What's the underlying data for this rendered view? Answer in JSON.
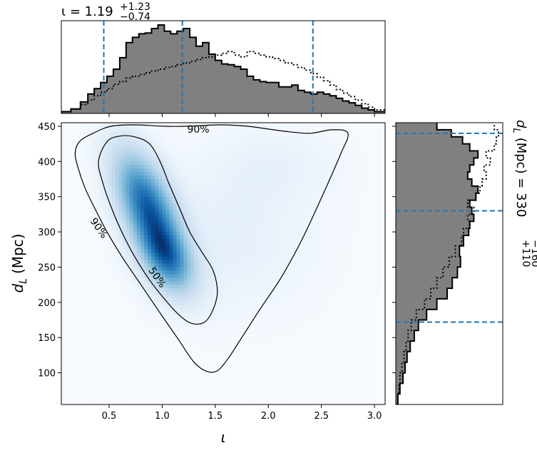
{
  "chart_data": {
    "type": "corner-plot",
    "panels": {
      "top_histogram": {
        "type": "histogram",
        "parameter": "ι",
        "title": "ι = 1.19",
        "title_sup": "+1.23",
        "title_sub": "−0.74",
        "xlim": [
          0.05,
          3.1
        ],
        "posterior_step": [
          [
            0.05,
            0.02
          ],
          [
            0.14,
            0.05
          ],
          [
            0.23,
            0.13
          ],
          [
            0.3,
            0.22
          ],
          [
            0.36,
            0.28
          ],
          [
            0.42,
            0.35
          ],
          [
            0.48,
            0.42
          ],
          [
            0.54,
            0.5
          ],
          [
            0.6,
            0.63
          ],
          [
            0.66,
            0.8
          ],
          [
            0.72,
            0.86
          ],
          [
            0.78,
            0.9
          ],
          [
            0.84,
            0.91
          ],
          [
            0.9,
            0.96
          ],
          [
            0.96,
            1.0
          ],
          [
            1.02,
            0.93
          ],
          [
            1.08,
            0.9
          ],
          [
            1.14,
            0.93
          ],
          [
            1.2,
            0.96
          ],
          [
            1.26,
            0.86
          ],
          [
            1.32,
            0.76
          ],
          [
            1.38,
            0.8
          ],
          [
            1.44,
            0.67
          ],
          [
            1.5,
            0.6
          ],
          [
            1.56,
            0.56
          ],
          [
            1.62,
            0.55
          ],
          [
            1.68,
            0.53
          ],
          [
            1.74,
            0.5
          ],
          [
            1.8,
            0.42
          ],
          [
            1.86,
            0.38
          ],
          [
            1.92,
            0.36
          ],
          [
            1.98,
            0.35
          ],
          [
            2.04,
            0.35
          ],
          [
            2.1,
            0.3
          ],
          [
            2.16,
            0.3
          ],
          [
            2.22,
            0.32
          ],
          [
            2.28,
            0.26
          ],
          [
            2.34,
            0.24
          ],
          [
            2.4,
            0.22
          ],
          [
            2.46,
            0.24
          ],
          [
            2.52,
            0.22
          ],
          [
            2.58,
            0.2
          ],
          [
            2.64,
            0.17
          ],
          [
            2.7,
            0.14
          ],
          [
            2.76,
            0.12
          ],
          [
            2.82,
            0.09
          ],
          [
            2.88,
            0.06
          ],
          [
            2.94,
            0.04
          ],
          [
            3.0,
            0.02
          ]
        ],
        "prior_step": [
          [
            0.05,
            0.02
          ],
          [
            0.14,
            0.05
          ],
          [
            0.23,
            0.1
          ],
          [
            0.3,
            0.15
          ],
          [
            0.36,
            0.2
          ],
          [
            0.42,
            0.24
          ],
          [
            0.48,
            0.28
          ],
          [
            0.54,
            0.33
          ],
          [
            0.6,
            0.36
          ],
          [
            0.66,
            0.4
          ],
          [
            0.72,
            0.42
          ],
          [
            0.78,
            0.44
          ],
          [
            0.84,
            0.46
          ],
          [
            0.9,
            0.48
          ],
          [
            0.96,
            0.5
          ],
          [
            1.02,
            0.52
          ],
          [
            1.08,
            0.53
          ],
          [
            1.14,
            0.55
          ],
          [
            1.2,
            0.57
          ],
          [
            1.26,
            0.59
          ],
          [
            1.32,
            0.61
          ],
          [
            1.38,
            0.63
          ],
          [
            1.44,
            0.64
          ],
          [
            1.5,
            0.66
          ],
          [
            1.56,
            0.68
          ],
          [
            1.62,
            0.7
          ],
          [
            1.68,
            0.66
          ],
          [
            1.74,
            0.64
          ],
          [
            1.8,
            0.7
          ],
          [
            1.86,
            0.68
          ],
          [
            1.92,
            0.66
          ],
          [
            1.98,
            0.64
          ],
          [
            2.04,
            0.62
          ],
          [
            2.1,
            0.6
          ],
          [
            2.16,
            0.57
          ],
          [
            2.22,
            0.55
          ],
          [
            2.28,
            0.52
          ],
          [
            2.34,
            0.49
          ],
          [
            2.4,
            0.45
          ],
          [
            2.46,
            0.41
          ],
          [
            2.52,
            0.37
          ],
          [
            2.58,
            0.32
          ],
          [
            2.64,
            0.27
          ],
          [
            2.7,
            0.23
          ],
          [
            2.76,
            0.19
          ],
          [
            2.82,
            0.15
          ],
          [
            2.88,
            0.11
          ],
          [
            2.94,
            0.07
          ],
          [
            3.0,
            0.04
          ]
        ],
        "dashed_lines": [
          0.45,
          1.19,
          2.42
        ],
        "line_color": "#1f77b4",
        "fill_color": "#808080"
      },
      "main_2d": {
        "type": "2d-density",
        "xlabel": "ι",
        "ylabel": "d",
        "ylabel_sub": "L",
        "ylabel_unit": "(Mpc)",
        "xlim": [
          0.05,
          3.1
        ],
        "ylim": [
          55,
          455
        ],
        "xticks": [
          "0.5",
          "1.0",
          "1.5",
          "2.0",
          "2.5",
          "3.0"
        ],
        "yticks": [
          "100",
          "150",
          "200",
          "250",
          "300",
          "350",
          "400",
          "450"
        ],
        "colormap": "Blues",
        "density_peaks": [
          {
            "x": 0.85,
            "y": 340,
            "sx": 0.22,
            "sy": 55,
            "rho": -0.55,
            "weight": 1.0
          },
          {
            "x": 1.05,
            "y": 260,
            "sx": 0.18,
            "sy": 35,
            "rho": -0.4,
            "weight": 0.7
          },
          {
            "x": 1.65,
            "y": 290,
            "sx": 0.6,
            "sy": 80,
            "rho": 0.0,
            "weight": 0.12
          },
          {
            "x": 2.1,
            "y": 400,
            "sx": 0.45,
            "sy": 40,
            "rho": 0.0,
            "weight": 0.08
          }
        ],
        "contours": [
          {
            "label": "90%",
            "points": [
              [
                0.18,
                410
              ],
              [
                0.22,
                385
              ],
              [
                0.28,
                360
              ],
              [
                0.36,
                335
              ],
              [
                0.48,
                300
              ],
              [
                0.62,
                265
              ],
              [
                0.8,
                225
              ],
              [
                0.98,
                185
              ],
              [
                1.15,
                148
              ],
              [
                1.3,
                115
              ],
              [
                1.42,
                102
              ],
              [
                1.52,
                103
              ],
              [
                1.62,
                120
              ],
              [
                1.75,
                150
              ],
              [
                1.92,
                190
              ],
              [
                2.12,
                235
              ],
              [
                2.32,
                290
              ],
              [
                2.52,
                355
              ],
              [
                2.68,
                410
              ],
              [
                2.75,
                440
              ],
              [
                2.6,
                445
              ],
              [
                2.4,
                440
              ],
              [
                2.2,
                442
              ],
              [
                2.0,
                446
              ],
              [
                1.8,
                450
              ],
              [
                1.55,
                452
              ],
              [
                1.25,
                450
              ],
              [
                1.0,
                450
              ],
              [
                0.75,
                452
              ],
              [
                0.52,
                450
              ],
              [
                0.35,
                440
              ],
              [
                0.22,
                428
              ]
            ]
          },
          {
            "label": "50%",
            "points": [
              [
                0.4,
                400
              ],
              [
                0.44,
                370
              ],
              [
                0.52,
                335
              ],
              [
                0.62,
                300
              ],
              [
                0.74,
                265
              ],
              [
                0.88,
                232
              ],
              [
                1.02,
                205
              ],
              [
                1.16,
                182
              ],
              [
                1.28,
                170
              ],
              [
                1.4,
                172
              ],
              [
                1.48,
                190
              ],
              [
                1.52,
                215
              ],
              [
                1.48,
                245
              ],
              [
                1.38,
                270
              ],
              [
                1.26,
                300
              ],
              [
                1.16,
                335
              ],
              [
                1.06,
                370
              ],
              [
                0.98,
                400
              ],
              [
                0.88,
                425
              ],
              [
                0.74,
                435
              ],
              [
                0.6,
                436
              ],
              [
                0.48,
                428
              ]
            ]
          }
        ],
        "contour_labels": [
          {
            "text": "90%",
            "x": 1.34,
            "y": 445,
            "angle": 0
          },
          {
            "text": "90%",
            "x": 0.4,
            "y": 305,
            "angle": 55
          },
          {
            "text": "50%",
            "x": 0.95,
            "y": 235,
            "angle": 55
          }
        ]
      },
      "right_histogram": {
        "type": "histogram",
        "orientation": "horizontal",
        "parameter": "d_L",
        "title": "d",
        "title_sub_index": "L",
        "title_unit": "(Mpc) = 330",
        "title_sup": "+110",
        "title_sub": "−160",
        "ylim": [
          55,
          455
        ],
        "posterior_step": [
          [
            55,
            0.02
          ],
          [
            70,
            0.04
          ],
          [
            85,
            0.07
          ],
          [
            100,
            0.09
          ],
          [
            115,
            0.11
          ],
          [
            130,
            0.14
          ],
          [
            145,
            0.18
          ],
          [
            160,
            0.22
          ],
          [
            175,
            0.3
          ],
          [
            190,
            0.4
          ],
          [
            205,
            0.5
          ],
          [
            220,
            0.55
          ],
          [
            235,
            0.6
          ],
          [
            250,
            0.63
          ],
          [
            265,
            0.62
          ],
          [
            280,
            0.66
          ],
          [
            295,
            0.71
          ],
          [
            305,
            0.72
          ],
          [
            315,
            0.76
          ],
          [
            325,
            0.74
          ],
          [
            335,
            0.72
          ],
          [
            345,
            0.78
          ],
          [
            355,
            0.8
          ],
          [
            365,
            0.74
          ],
          [
            375,
            0.7
          ],
          [
            385,
            0.72
          ],
          [
            395,
            0.76
          ],
          [
            405,
            0.8
          ],
          [
            415,
            0.72
          ],
          [
            425,
            0.65
          ],
          [
            435,
            0.54
          ],
          [
            445,
            0.4
          ]
        ],
        "prior_step": [
          [
            55,
            0.02
          ],
          [
            70,
            0.03
          ],
          [
            85,
            0.04
          ],
          [
            100,
            0.06
          ],
          [
            115,
            0.08
          ],
          [
            130,
            0.1
          ],
          [
            145,
            0.12
          ],
          [
            160,
            0.15
          ],
          [
            175,
            0.2
          ],
          [
            190,
            0.28
          ],
          [
            205,
            0.34
          ],
          [
            220,
            0.4
          ],
          [
            235,
            0.46
          ],
          [
            250,
            0.52
          ],
          [
            265,
            0.58
          ],
          [
            280,
            0.64
          ],
          [
            295,
            0.66
          ],
          [
            305,
            0.72
          ],
          [
            315,
            0.7
          ],
          [
            325,
            0.76
          ],
          [
            335,
            0.7
          ],
          [
            345,
            0.78
          ],
          [
            355,
            0.82
          ],
          [
            365,
            0.84
          ],
          [
            375,
            0.88
          ],
          [
            385,
            0.86
          ],
          [
            395,
            0.92
          ],
          [
            405,
            0.88
          ],
          [
            415,
            0.96
          ],
          [
            425,
            0.98
          ],
          [
            435,
            1.0
          ],
          [
            445,
            0.96
          ]
        ],
        "dashed_lines": [
          172,
          330,
          440
        ],
        "line_color": "#1f77b4",
        "fill_color": "#808080"
      }
    }
  }
}
